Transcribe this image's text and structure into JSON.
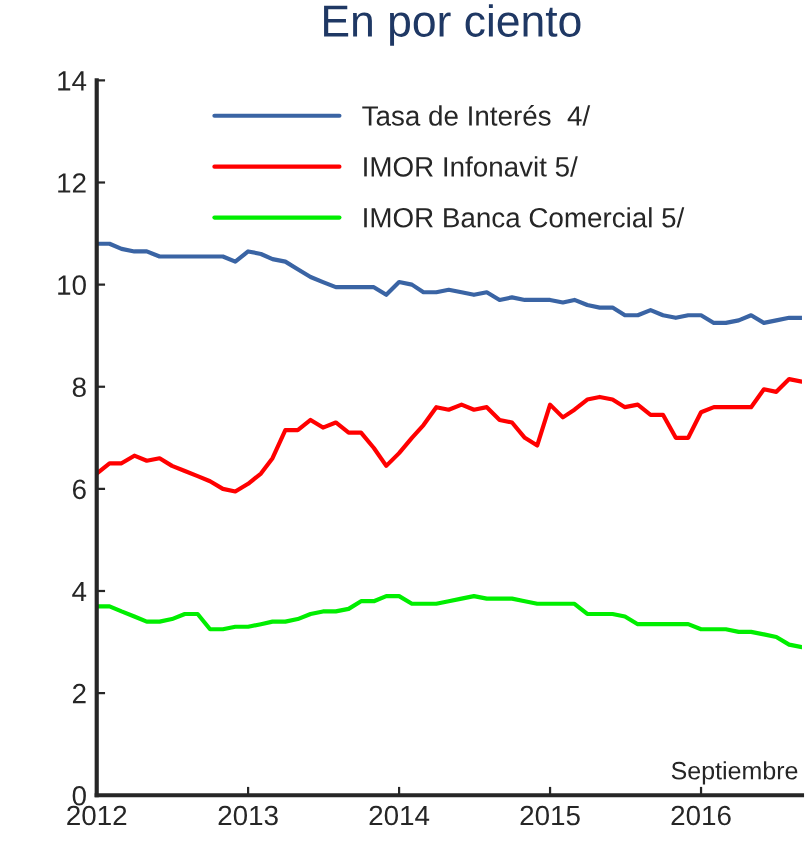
{
  "chart_data": {
    "type": "line",
    "title": "En por ciento",
    "x": [
      "2012-01",
      "2012-02",
      "2012-03",
      "2012-04",
      "2012-05",
      "2012-06",
      "2012-07",
      "2012-08",
      "2012-09",
      "2012-10",
      "2012-11",
      "2012-12",
      "2013-01",
      "2013-02",
      "2013-03",
      "2013-04",
      "2013-05",
      "2013-06",
      "2013-07",
      "2013-08",
      "2013-09",
      "2013-10",
      "2013-11",
      "2013-12",
      "2014-01",
      "2014-02",
      "2014-03",
      "2014-04",
      "2014-05",
      "2014-06",
      "2014-07",
      "2014-08",
      "2014-09",
      "2014-10",
      "2014-11",
      "2014-12",
      "2015-01",
      "2015-02",
      "2015-03",
      "2015-04",
      "2015-05",
      "2015-06",
      "2015-07",
      "2015-08",
      "2015-09",
      "2015-10",
      "2015-11",
      "2015-12",
      "2016-01",
      "2016-02",
      "2016-03",
      "2016-04",
      "2016-05",
      "2016-06",
      "2016-07",
      "2016-08",
      "2016-09"
    ],
    "series": [
      {
        "name": "Tasa de Interés  4/",
        "color": "#3a64a4",
        "values": [
          10.8,
          10.8,
          10.7,
          10.65,
          10.65,
          10.55,
          10.55,
          10.55,
          10.55,
          10.55,
          10.55,
          10.45,
          10.65,
          10.6,
          10.5,
          10.45,
          10.3,
          10.15,
          10.05,
          9.95,
          9.95,
          9.95,
          9.95,
          9.8,
          10.05,
          10.0,
          9.85,
          9.85,
          9.9,
          9.85,
          9.8,
          9.85,
          9.7,
          9.75,
          9.7,
          9.7,
          9.7,
          9.65,
          9.7,
          9.6,
          9.55,
          9.55,
          9.4,
          9.4,
          9.5,
          9.4,
          9.35,
          9.4,
          9.4,
          9.25,
          9.25,
          9.3,
          9.4,
          9.25,
          9.3,
          9.35,
          9.35
        ]
      },
      {
        "name": "IMOR Infonavit 5/",
        "color": "#ff0000",
        "values": [
          6.3,
          6.5,
          6.5,
          6.65,
          6.55,
          6.6,
          6.45,
          6.35,
          6.25,
          6.15,
          6.0,
          5.95,
          6.1,
          6.3,
          6.6,
          7.15,
          7.15,
          7.35,
          7.2,
          7.3,
          7.1,
          7.1,
          6.8,
          6.45,
          6.7,
          7.0,
          7.25,
          7.6,
          7.55,
          7.65,
          7.55,
          7.6,
          7.35,
          7.3,
          7.0,
          6.85,
          7.65,
          7.4,
          7.55,
          7.75,
          7.8,
          7.75,
          7.6,
          7.65,
          7.45,
          7.45,
          7.0,
          7.0,
          7.5,
          7.6,
          7.6,
          7.6,
          7.6,
          7.95,
          7.9,
          8.15,
          8.1
        ]
      },
      {
        "name": "IMOR Banca Comercial 5/",
        "color": "#00ee00",
        "values": [
          3.7,
          3.7,
          3.6,
          3.5,
          3.4,
          3.4,
          3.45,
          3.55,
          3.55,
          3.25,
          3.25,
          3.3,
          3.3,
          3.35,
          3.4,
          3.4,
          3.45,
          3.55,
          3.6,
          3.6,
          3.65,
          3.8,
          3.8,
          3.9,
          3.9,
          3.75,
          3.75,
          3.75,
          3.8,
          3.85,
          3.9,
          3.85,
          3.85,
          3.85,
          3.8,
          3.75,
          3.75,
          3.75,
          3.75,
          3.55,
          3.55,
          3.55,
          3.5,
          3.35,
          3.35,
          3.35,
          3.35,
          3.35,
          3.25,
          3.25,
          3.25,
          3.2,
          3.2,
          3.15,
          3.1,
          2.95,
          2.9
        ]
      }
    ],
    "xlim": [
      "2012-01",
      "2016-09"
    ],
    "xticks": [
      {
        "value": "2012",
        "label": "2012"
      },
      {
        "value": "2013",
        "label": "2013"
      },
      {
        "value": "2014",
        "label": "2014"
      },
      {
        "value": "2015",
        "label": "2015"
      },
      {
        "value": "2016",
        "label": "2016"
      }
    ],
    "ylim": [
      0,
      14
    ],
    "yticks": [
      0,
      2,
      4,
      6,
      8,
      10,
      12,
      14
    ],
    "annotations": [
      "Septiembre"
    ],
    "legend": "top",
    "grid": false,
    "marker": "none",
    "line_style": "solid"
  }
}
